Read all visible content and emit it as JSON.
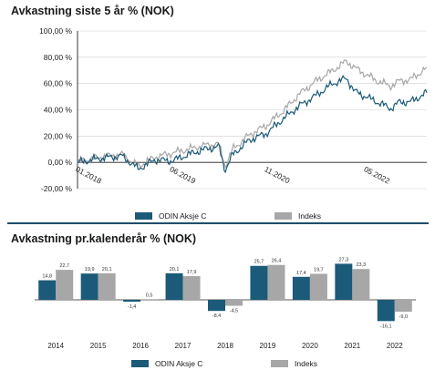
{
  "colors": {
    "fund": "#1b5a78",
    "index": "#a7a7a7",
    "axis": "#222222",
    "divider": "#1e4e6a"
  },
  "chart_data": [
    {
      "type": "line",
      "title": "Avkastning siste 5 år % (NOK)",
      "ylim": [
        -20,
        100
      ],
      "yticks": [
        "100,00 %",
        "80,00 %",
        "60,00 %",
        "40,00 %",
        "20,00 %",
        "0,00 %",
        "-20,00 %"
      ],
      "ytick_values": [
        100,
        80,
        60,
        40,
        20,
        0,
        -20
      ],
      "xlim": [
        "2018-01-01",
        "2023-03-31"
      ],
      "xticks": [
        "01.2018",
        "06.2019",
        "11.2020",
        "05.2022"
      ],
      "xtick_dates": [
        "2018-01-01",
        "2019-06-01",
        "2020-11-01",
        "2022-05-01"
      ],
      "grid": "horizontal",
      "legend_position": "bottom",
      "series": [
        {
          "name": "ODIN Aksje C",
          "color": "#1b5a78",
          "x": [
            "2018-01-01",
            "2018-05-01",
            "2018-09-01",
            "2018-12-01",
            "2019-03-01",
            "2019-06-01",
            "2019-09-01",
            "2019-12-01",
            "2020-02-15",
            "2020-03-20",
            "2020-05-01",
            "2020-08-01",
            "2020-11-01",
            "2021-02-01",
            "2021-05-01",
            "2021-08-01",
            "2021-11-01",
            "2022-01-15",
            "2022-03-01",
            "2022-05-01",
            "2022-07-01",
            "2022-09-15",
            "2022-11-01",
            "2023-01-01",
            "2023-03-31"
          ],
          "values": [
            0,
            3,
            5,
            -5,
            2,
            1,
            6,
            10,
            12,
            -6,
            6,
            17,
            22,
            33,
            43,
            51,
            60,
            64,
            54,
            50,
            46,
            41,
            46,
            46,
            53
          ]
        },
        {
          "name": "Indeks",
          "color": "#a7a7a7",
          "x": [
            "2018-01-01",
            "2018-05-01",
            "2018-09-01",
            "2018-12-01",
            "2019-03-01",
            "2019-06-01",
            "2019-09-01",
            "2019-12-01",
            "2020-02-15",
            "2020-03-20",
            "2020-05-01",
            "2020-08-01",
            "2020-11-01",
            "2021-02-01",
            "2021-05-01",
            "2021-08-01",
            "2021-11-01",
            "2022-01-15",
            "2022-03-01",
            "2022-05-01",
            "2022-07-01",
            "2022-09-15",
            "2022-11-01",
            "2023-01-01",
            "2023-03-31"
          ],
          "values": [
            0,
            4,
            6,
            -3,
            4,
            7,
            10,
            13,
            14,
            -3,
            10,
            21,
            28,
            39,
            52,
            62,
            70,
            77,
            72,
            67,
            62,
            58,
            62,
            63,
            72
          ]
        }
      ]
    },
    {
      "type": "bar",
      "title": "Avkastning pr.kalenderår % (NOK)",
      "categories": [
        "2014",
        "2015",
        "2016",
        "2017",
        "2018",
        "2019",
        "2020",
        "2021",
        "2022"
      ],
      "legend_position": "bottom",
      "series": [
        {
          "name": "ODIN Aksje C",
          "color": "#1b5a78",
          "values": [
            14.8,
            19.9,
            -1.4,
            20.1,
            -8.4,
            25.7,
            17.4,
            27.3,
            -16.1
          ],
          "labels": [
            "14,8",
            "19,9",
            "-1,4",
            "20,1",
            "-8,4",
            "25,7",
            "17,4",
            "27,3",
            "-16,1"
          ]
        },
        {
          "name": "Indeks",
          "color": "#a7a7a7",
          "values": [
            22.7,
            20.1,
            0.5,
            17.9,
            -4.5,
            26.4,
            19.7,
            23.3,
            -9.0
          ],
          "labels": [
            "22,7",
            "20,1",
            "0,5",
            "17,9",
            "-4,5",
            "26,4",
            "19,7",
            "23,3",
            "-9,0"
          ]
        }
      ]
    }
  ]
}
